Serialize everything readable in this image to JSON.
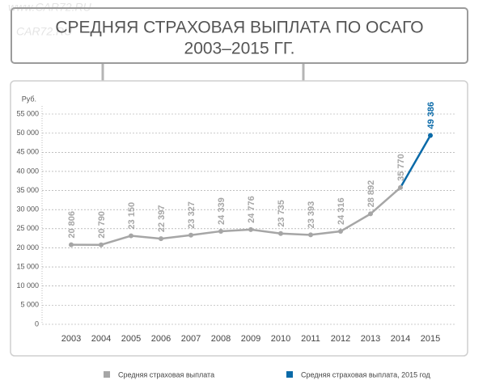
{
  "watermark": [
    "www.CAR72.RU",
    "CAR72.RU"
  ],
  "chart_data": {
    "type": "line",
    "title_lines": [
      "СРЕДНЯЯ СТРАХОВАЯ ВЫПЛАТА ПО ОСАГО",
      "2003–2015 ГГ."
    ],
    "y_label": "Руб.",
    "categories": [
      "2003",
      "2004",
      "2005",
      "2006",
      "2007",
      "2008",
      "2009",
      "2010",
      "2011",
      "2012",
      "2013",
      "2014",
      "2015"
    ],
    "series": [
      {
        "name": "Средняя страховая выплата",
        "color": "#a6a6a6",
        "values": [
          20806,
          20790,
          23150,
          22397,
          23327,
          24339,
          24776,
          23735,
          23393,
          24316,
          28892,
          35770,
          null
        ],
        "value_labels": [
          "20 806",
          "20 790",
          "23 150",
          "22 397",
          "23 327",
          "24 339",
          "24 776",
          "23 735",
          "23 393",
          "24 316",
          "28 892",
          "35 770",
          null
        ]
      },
      {
        "name": "Средняя страховая выплата, 2015 год",
        "color": "#0a6aa8",
        "values": [
          null,
          null,
          null,
          null,
          null,
          null,
          null,
          null,
          null,
          null,
          null,
          null,
          49386
        ],
        "value_labels": [
          null,
          null,
          null,
          null,
          null,
          null,
          null,
          null,
          null,
          null,
          null,
          null,
          "49 386"
        ]
      }
    ],
    "ylim": [
      0,
      55000
    ],
    "yticks": [
      0,
      {
        "value": 5000,
        "label": "5 000"
      },
      {
        "value": 10000,
        "label": "10 000"
      },
      {
        "value": 15000,
        "label": "15 000"
      },
      {
        "value": 20000,
        "label": "20 000"
      },
      {
        "value": 25000,
        "label": "25 000"
      },
      {
        "value": 30000,
        "label": "30 000"
      },
      {
        "value": 35000,
        "label": "35 000"
      },
      {
        "value": 40000,
        "label": "40 000"
      },
      {
        "value": 45000,
        "label": "45 000"
      },
      {
        "value": 50000,
        "label": "50 000"
      },
      {
        "value": 55000,
        "label": "55 000"
      }
    ],
    "grid": true
  }
}
